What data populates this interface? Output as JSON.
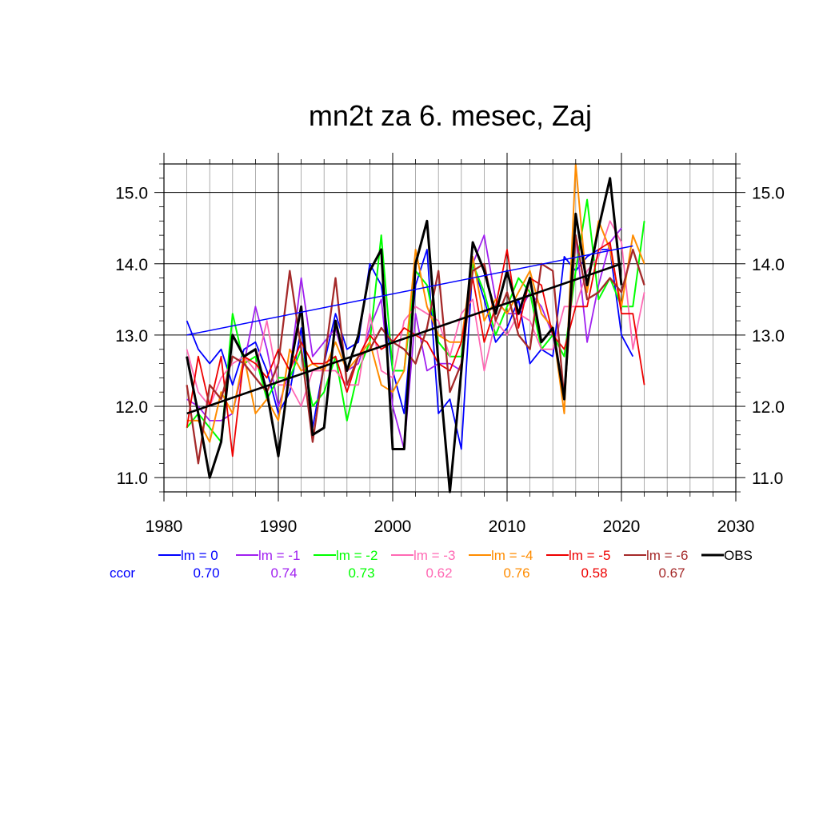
{
  "chart_data": {
    "type": "line",
    "title": "mn2t za 6. mesec, Zaj",
    "xlabel": "",
    "ylabel": "",
    "xlim": [
      1980,
      2030
    ],
    "ylim": [
      10.8,
      15.4
    ],
    "x_ticks": [
      1980,
      1990,
      2000,
      2010,
      2020,
      2030
    ],
    "x_tick_labels": [
      "1980",
      "1990",
      "2000",
      "2010",
      "2020",
      "2030"
    ],
    "y_ticks": [
      11.0,
      12.0,
      13.0,
      14.0,
      15.0
    ],
    "y_tick_labels": [
      "11.0",
      "12.0",
      "13.0",
      "14.0",
      "15.0"
    ],
    "grid": true,
    "legend_position": "bottom",
    "ccor_label": "ccor",
    "series": [
      {
        "name": "lm = 0",
        "color": "#0000ff",
        "width": 1.8,
        "ccor": "0.70",
        "x": [
          1982,
          1983,
          1984,
          1985,
          1986,
          1987,
          1988,
          1989,
          1990,
          1991,
          1992,
          1993,
          1994,
          1995,
          1996,
          1997,
          1998,
          1999,
          2000,
          2001,
          2002,
          2003,
          2004,
          2005,
          2006,
          2007,
          2008,
          2009,
          2010,
          2011,
          2012,
          2013,
          2014,
          2015,
          2016,
          2017,
          2018,
          2019,
          2020,
          2021
        ],
        "values": [
          13.2,
          12.8,
          12.6,
          12.8,
          12.3,
          12.8,
          12.9,
          12.5,
          11.9,
          12.2,
          13.1,
          11.7,
          12.6,
          13.3,
          12.8,
          12.9,
          14.0,
          13.7,
          12.5,
          11.9,
          13.7,
          14.2,
          11.9,
          12.1,
          11.4,
          14.0,
          13.5,
          12.9,
          13.1,
          13.5,
          12.6,
          12.8,
          12.7,
          14.1,
          13.9,
          14.1,
          14.2,
          14.2,
          13.0,
          12.7
        ],
        "trend": [
          13.0,
          14.25
        ]
      },
      {
        "name": "lm = -1",
        "color": "#a020f0",
        "width": 1.8,
        "ccor": "0.74",
        "x": [
          1982,
          1983,
          1984,
          1985,
          1986,
          1987,
          1988,
          1989,
          1990,
          1991,
          1992,
          1993,
          1994,
          1995,
          1996,
          1997,
          1998,
          1999,
          2000,
          2001,
          2002,
          2003,
          2004,
          2005,
          2006,
          2007,
          2008,
          2009,
          2010,
          2011,
          2012,
          2013,
          2014,
          2015,
          2016,
          2017,
          2018,
          2019,
          2020
        ],
        "values": [
          12.1,
          12.0,
          11.8,
          11.8,
          11.9,
          12.6,
          13.4,
          12.8,
          12.0,
          12.5,
          13.8,
          12.7,
          12.9,
          13.1,
          12.5,
          12.6,
          13.1,
          13.5,
          12.0,
          11.4,
          13.3,
          12.5,
          12.6,
          12.6,
          12.5,
          14.0,
          14.4,
          13.5,
          13.3,
          13.3,
          13.6,
          13.4,
          13.0,
          12.2,
          14.4,
          12.9,
          13.7,
          14.3,
          14.5
        ],
        "trend": null
      },
      {
        "name": "lm = -2",
        "color": "#00ff00",
        "width": 2.0,
        "ccor": "0.73",
        "x": [
          1982,
          1983,
          1984,
          1985,
          1986,
          1987,
          1988,
          1989,
          1990,
          1991,
          1992,
          1993,
          1994,
          1995,
          1996,
          1997,
          1998,
          1999,
          2000,
          2001,
          2002,
          2003,
          2004,
          2005,
          2006,
          2007,
          2008,
          2009,
          2010,
          2011,
          2012,
          2013,
          2014,
          2015,
          2016,
          2017,
          2018,
          2019,
          2020,
          2021,
          2022
        ],
        "values": [
          11.7,
          11.9,
          11.7,
          11.5,
          13.3,
          12.6,
          12.7,
          12.1,
          12.4,
          12.4,
          12.8,
          12.0,
          12.2,
          12.7,
          11.8,
          12.5,
          12.9,
          14.4,
          12.5,
          12.5,
          13.9,
          13.7,
          12.9,
          12.7,
          12.7,
          14.0,
          13.6,
          13.0,
          13.4,
          13.8,
          13.6,
          12.8,
          13.0,
          12.7,
          13.9,
          14.9,
          13.5,
          13.8,
          13.4,
          13.4,
          14.6
        ],
        "trend": null
      },
      {
        "name": "lm = -3",
        "color": "#ff69b4",
        "width": 1.8,
        "ccor": "0.62",
        "x": [
          1982,
          1983,
          1984,
          1985,
          1986,
          1987,
          1988,
          1989,
          1990,
          1991,
          1992,
          1993,
          1994,
          1995,
          1996,
          1997,
          1998,
          1999,
          2000,
          2001,
          2002,
          2003,
          2004,
          2005,
          2006,
          2007,
          2008,
          2009,
          2010,
          2011,
          2012,
          2013,
          2014,
          2015,
          2016,
          2017,
          2018,
          2019,
          2020,
          2021,
          2022
        ],
        "values": [
          12.8,
          12.2,
          12.0,
          12.4,
          12.6,
          12.7,
          12.5,
          13.2,
          12.3,
          12.3,
          12.0,
          12.5,
          12.5,
          12.5,
          12.3,
          12.3,
          13.3,
          12.5,
          12.4,
          13.2,
          13.4,
          13.3,
          13.2,
          12.7,
          13.3,
          13.5,
          12.5,
          13.2,
          13.0,
          13.3,
          13.2,
          12.8,
          12.8,
          13.4,
          13.4,
          13.9,
          14.1,
          14.6,
          14.3,
          12.8,
          13.6
        ],
        "trend": null
      },
      {
        "name": "lm = -4",
        "color": "#ff8c00",
        "width": 2.0,
        "ccor": "0.76",
        "x": [
          1982,
          1983,
          1984,
          1985,
          1986,
          1987,
          1988,
          1989,
          1990,
          1991,
          1992,
          1993,
          1994,
          1995,
          1996,
          1997,
          1998,
          1999,
          2000,
          2001,
          2002,
          2003,
          2004,
          2005,
          2006,
          2007,
          2008,
          2009,
          2010,
          2011,
          2012,
          2013,
          2014,
          2015,
          2016,
          2017,
          2018,
          2019,
          2020,
          2021,
          2022
        ],
        "values": [
          11.8,
          11.8,
          11.5,
          12.2,
          11.9,
          12.7,
          11.9,
          12.1,
          11.8,
          12.8,
          12.5,
          12.6,
          12.5,
          12.9,
          12.5,
          12.7,
          12.9,
          12.3,
          12.2,
          12.5,
          14.2,
          13.4,
          13.0,
          12.9,
          12.9,
          14.1,
          13.2,
          13.5,
          13.3,
          13.6,
          13.9,
          13.3,
          13.1,
          11.9,
          15.4,
          13.6,
          14.6,
          14.2,
          13.4,
          14.4,
          14.0
        ],
        "trend": null
      },
      {
        "name": "lm = -5",
        "color": "#ee0000",
        "width": 1.8,
        "ccor": "0.58",
        "x": [
          1982,
          1983,
          1984,
          1985,
          1986,
          1987,
          1988,
          1989,
          1990,
          1991,
          1992,
          1993,
          1994,
          1995,
          1996,
          1997,
          1998,
          1999,
          2000,
          2001,
          2002,
          2003,
          2004,
          2005,
          2006,
          2007,
          2008,
          2009,
          2010,
          2011,
          2012,
          2013,
          2014,
          2015,
          2016,
          2017,
          2018,
          2019,
          2020,
          2021,
          2022
        ],
        "values": [
          11.7,
          12.7,
          12.0,
          12.7,
          11.3,
          12.7,
          12.6,
          12.4,
          12.8,
          12.5,
          12.9,
          12.6,
          12.6,
          12.7,
          12.2,
          12.7,
          13.0,
          12.8,
          12.9,
          13.1,
          13.0,
          12.9,
          12.6,
          12.5,
          12.9,
          13.8,
          12.9,
          13.4,
          14.2,
          13.1,
          13.8,
          13.7,
          13.0,
          12.8,
          13.4,
          13.4,
          14.2,
          14.3,
          13.3,
          13.3,
          12.3
        ],
        "trend": null
      },
      {
        "name": "lm = -6",
        "color": "#a52a2a",
        "width": 2.3,
        "ccor": "0.67",
        "x": [
          1982,
          1983,
          1984,
          1985,
          1986,
          1987,
          1988,
          1989,
          1990,
          1991,
          1992,
          1993,
          1994,
          1995,
          1996,
          1997,
          1998,
          1999,
          2000,
          2001,
          2002,
          2003,
          2004,
          2005,
          2006,
          2007,
          2008,
          2009,
          2010,
          2011,
          2012,
          2013,
          2014,
          2015,
          2016,
          2017,
          2018,
          2019,
          2020,
          2021,
          2022
        ],
        "values": [
          12.3,
          11.2,
          12.3,
          12.1,
          12.7,
          12.6,
          12.4,
          12.2,
          12.6,
          13.9,
          12.8,
          11.5,
          12.6,
          13.8,
          12.3,
          12.7,
          12.8,
          13.1,
          12.9,
          12.8,
          12.6,
          13.1,
          13.9,
          12.2,
          12.6,
          13.9,
          14.0,
          13.2,
          13.6,
          13.0,
          12.8,
          14.0,
          13.9,
          12.1,
          14.4,
          13.5,
          13.6,
          13.8,
          13.6,
          14.2,
          13.7
        ],
        "trend": null
      },
      {
        "name": "OBS",
        "color": "#000000",
        "width": 3.0,
        "ccor": "",
        "x": [
          1982,
          1983,
          1984,
          1985,
          1986,
          1987,
          1988,
          1989,
          1990,
          1991,
          1992,
          1993,
          1994,
          1995,
          1996,
          1997,
          1998,
          1999,
          2000,
          2001,
          2002,
          2003,
          2004,
          2005,
          2006,
          2007,
          2008,
          2009,
          2010,
          2011,
          2012,
          2013,
          2014,
          2015,
          2016,
          2017,
          2018,
          2019,
          2020
        ],
        "values": [
          12.7,
          11.9,
          11.0,
          11.5,
          13.0,
          12.7,
          12.8,
          12.2,
          11.3,
          12.5,
          13.4,
          11.6,
          11.7,
          13.2,
          12.5,
          13.0,
          13.9,
          14.2,
          11.4,
          11.4,
          14.0,
          14.6,
          12.6,
          10.8,
          12.5,
          14.3,
          13.9,
          13.3,
          13.9,
          13.3,
          13.8,
          12.9,
          13.1,
          12.1,
          14.7,
          13.7,
          14.5,
          15.2,
          13.7
        ],
        "trend": [
          11.9,
          14.0
        ]
      }
    ]
  }
}
